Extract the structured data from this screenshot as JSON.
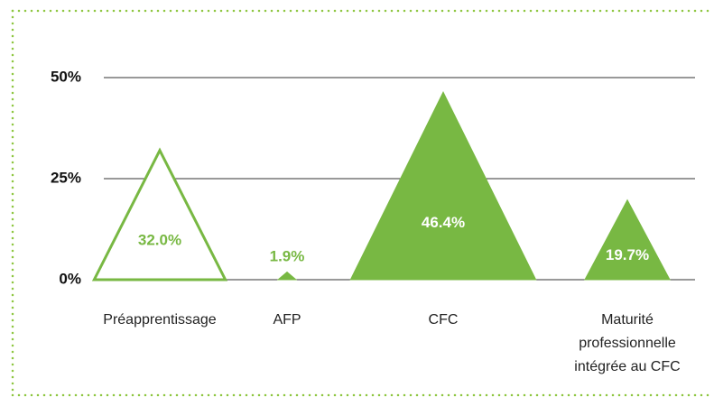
{
  "chart_data": {
    "type": "triangle",
    "categories": [
      "Préapprentissage",
      "AFP",
      "CFC",
      "Maturité professionnelle intégrée au CFC"
    ],
    "values": [
      32.0,
      1.9,
      46.4,
      19.7
    ],
    "value_labels": [
      "32.0%",
      "1.9%",
      "46.4%",
      "19.7%"
    ],
    "styles": [
      "outline",
      "filled",
      "filled",
      "filled"
    ],
    "color": "#78b843",
    "ylim": [
      0,
      50
    ],
    "yticks": [
      {
        "value": 0,
        "label": "0%"
      },
      {
        "value": 25,
        "label": "25%"
      },
      {
        "value": 50,
        "label": "50%"
      }
    ],
    "grid": true
  }
}
